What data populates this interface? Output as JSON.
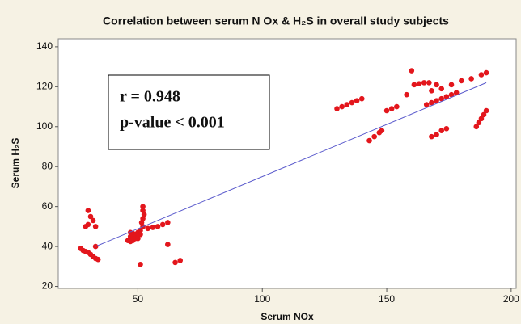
{
  "chart_data": {
    "type": "scatter",
    "title": "Correlation between serum N Ox & H₂S in overall study subjects",
    "x_label": "Serum NOx",
    "y_label": "Serum H₂S",
    "annotations": [
      "r = 0.948",
      "p-value < 0.001"
    ],
    "color": "#e3161c",
    "trend": {
      "color": "#5a5acc",
      "x": [
        33,
        190
      ],
      "y": [
        40,
        122
      ]
    },
    "xlim": [
      18,
      202
    ],
    "ylim": [
      19,
      144
    ],
    "xticks": [
      50,
      100,
      150,
      200
    ],
    "yticks": [
      20,
      40,
      60,
      80,
      100,
      120,
      140
    ],
    "grid": false,
    "x": [
      30,
      31,
      32,
      33,
      29,
      30,
      27,
      28,
      29,
      30,
      31,
      32,
      33,
      34,
      33,
      52,
      52,
      52.5,
      52,
      51.5,
      52,
      51,
      47,
      48,
      49,
      50,
      47,
      48,
      49,
      50,
      46,
      47,
      48,
      49,
      50,
      51,
      54,
      56,
      58,
      60,
      62,
      51,
      62,
      65,
      67,
      130,
      132,
      134,
      136,
      138,
      140,
      143,
      145,
      147,
      148,
      150,
      152,
      154,
      160,
      158,
      161,
      163,
      165,
      167,
      170,
      168,
      172,
      176,
      180,
      184,
      188,
      190,
      166,
      168,
      170,
      172,
      174,
      176,
      178,
      168,
      170,
      172,
      174,
      186,
      187,
      188,
      189,
      190
    ],
    "y": [
      58,
      55,
      53,
      50,
      50,
      51,
      39,
      38,
      37.5,
      37,
      36,
      35,
      34,
      33.5,
      40,
      60,
      58,
      56,
      54,
      52,
      50,
      48,
      47,
      46.5,
      46,
      47,
      45,
      44.5,
      45,
      46,
      43,
      42.5,
      43,
      44,
      44,
      46,
      49,
      49.5,
      50,
      51,
      52,
      31,
      41,
      32,
      33,
      109,
      110,
      111,
      112,
      113,
      114,
      93,
      95,
      97,
      98,
      108,
      109,
      110,
      128,
      116,
      121,
      121.5,
      122,
      122,
      121,
      118,
      119,
      121,
      123,
      124,
      126,
      127,
      111,
      112,
      113,
      114,
      115,
      116,
      117,
      95,
      96,
      98,
      99,
      100,
      102,
      104,
      106,
      108
    ]
  }
}
